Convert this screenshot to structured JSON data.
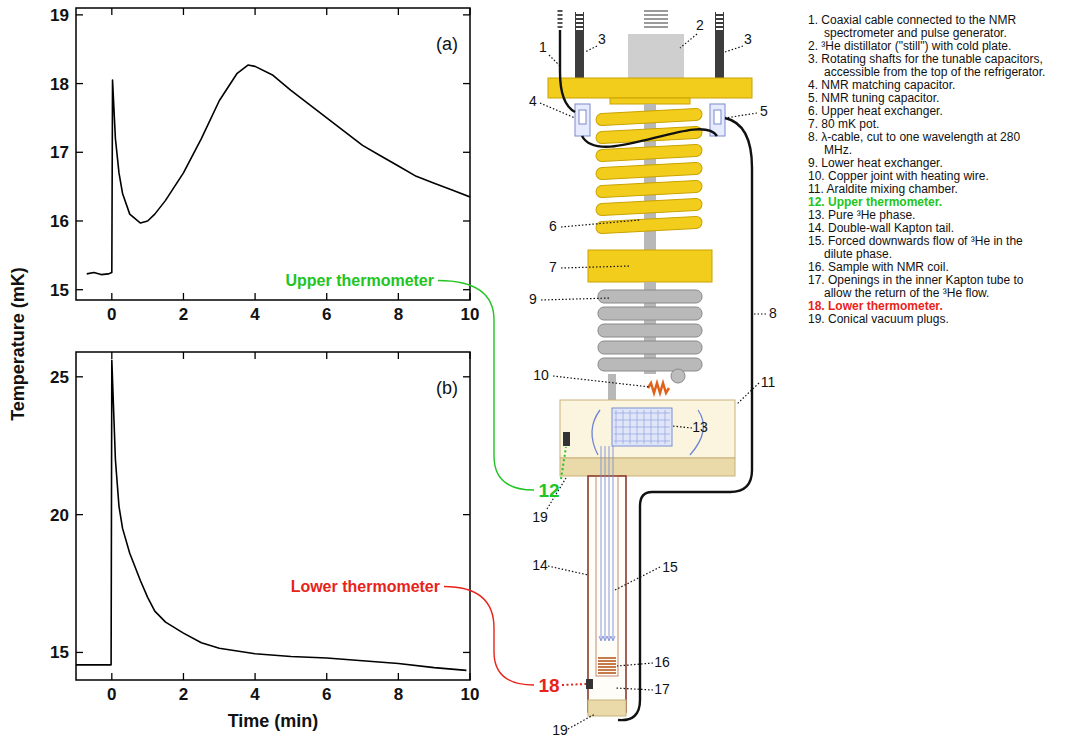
{
  "chart_data": [
    {
      "type": "line",
      "panel_label": "(a)",
      "y_label": "Temperature (mK)",
      "xlim": [
        -1,
        10
      ],
      "ylim": [
        14.85,
        19.1
      ],
      "xticks": [
        0,
        2,
        4,
        6,
        8,
        10
      ],
      "yticks": [
        15,
        16,
        17,
        18,
        19
      ],
      "x": [
        -0.7,
        -0.5,
        -0.3,
        -0.1,
        0,
        0.02,
        0.1,
        0.2,
        0.3,
        0.5,
        0.8,
        1.0,
        1.2,
        1.5,
        2,
        2.5,
        3,
        3.5,
        3.8,
        4,
        4.5,
        5,
        5.5,
        6,
        6.5,
        7,
        7.5,
        8,
        8.5,
        9,
        9.5,
        10
      ],
      "series": [
        {
          "color": "#000000",
          "values": [
            15.23,
            15.25,
            15.22,
            15.23,
            15.25,
            18.05,
            17.2,
            16.7,
            16.4,
            16.1,
            15.97,
            16.0,
            16.1,
            16.3,
            16.7,
            17.2,
            17.75,
            18.15,
            18.27,
            18.25,
            18.12,
            17.9,
            17.7,
            17.5,
            17.3,
            17.1,
            16.95,
            16.8,
            16.65,
            16.55,
            16.45,
            16.35
          ]
        }
      ]
    },
    {
      "type": "line",
      "panel_label": "(b)",
      "x_label": "Time (min)",
      "xlim": [
        -1,
        10
      ],
      "ylim": [
        14.0,
        25.9
      ],
      "xticks": [
        0,
        2,
        4,
        6,
        8,
        10
      ],
      "yticks": [
        15,
        20,
        25
      ],
      "x": [
        -1,
        -0.5,
        -0.02,
        0,
        0.1,
        0.2,
        0.3,
        0.5,
        0.8,
        1,
        1.2,
        1.5,
        2,
        2.5,
        3,
        4,
        5,
        6,
        7,
        8,
        9,
        9.9
      ],
      "series": [
        {
          "color": "#000000",
          "values": [
            14.55,
            14.55,
            14.55,
            25.6,
            22,
            20.3,
            19.5,
            18.6,
            17.6,
            17.0,
            16.5,
            16.1,
            15.7,
            15.35,
            15.15,
            14.95,
            14.85,
            14.8,
            14.7,
            14.6,
            14.45,
            14.35
          ]
        }
      ]
    }
  ],
  "diagram": {
    "thermometer_labels": [
      {
        "text": "Upper thermometer",
        "number": "12",
        "color": "#22c422"
      },
      {
        "text": "Lower thermometer",
        "number": "18",
        "color": "#e8231a"
      }
    ],
    "callout_numbers": [
      "1",
      "2",
      "3",
      "3",
      "4",
      "5",
      "6",
      "7",
      "8",
      "9",
      "10",
      "11",
      "13",
      "14",
      "15",
      "16",
      "17",
      "19",
      "19"
    ],
    "legend_items": [
      {
        "text": "1. Coaxial cable connected to the NMR spectrometer and pulse generator."
      },
      {
        "text": "2. ³He distillator (\"still\") with cold plate."
      },
      {
        "text": "3. Rotating shafts for the tunable capacitors, accessible from the top of the refrigerator."
      },
      {
        "text": "4. NMR matching capacitor."
      },
      {
        "text": "5. NMR tuning capacitor."
      },
      {
        "text": "6. Upper heat exchanger."
      },
      {
        "text": "7. 80 mK pot."
      },
      {
        "text": "8. λ-cable, cut to one wavelength at 280 MHz."
      },
      {
        "text": "9. Lower heat exchanger."
      },
      {
        "text": "10. Copper joint with heating wire."
      },
      {
        "text": "11. Araldite mixing chamber."
      },
      {
        "text": "12. Upper thermometer.",
        "color": "#22c422"
      },
      {
        "text": "13. Pure ³He phase."
      },
      {
        "text": "14. Double-wall Kapton tail."
      },
      {
        "text": "15. Forced downwards flow of ³He in the dilute phase."
      },
      {
        "text": "16. Sample with NMR coil."
      },
      {
        "text": "17. Openings in the inner Kapton tube to allow the return of the ³He flow."
      },
      {
        "text": "18. Lower thermometer.",
        "color": "#e8231a"
      },
      {
        "text": "19. Conical vacuum plugs."
      }
    ]
  }
}
